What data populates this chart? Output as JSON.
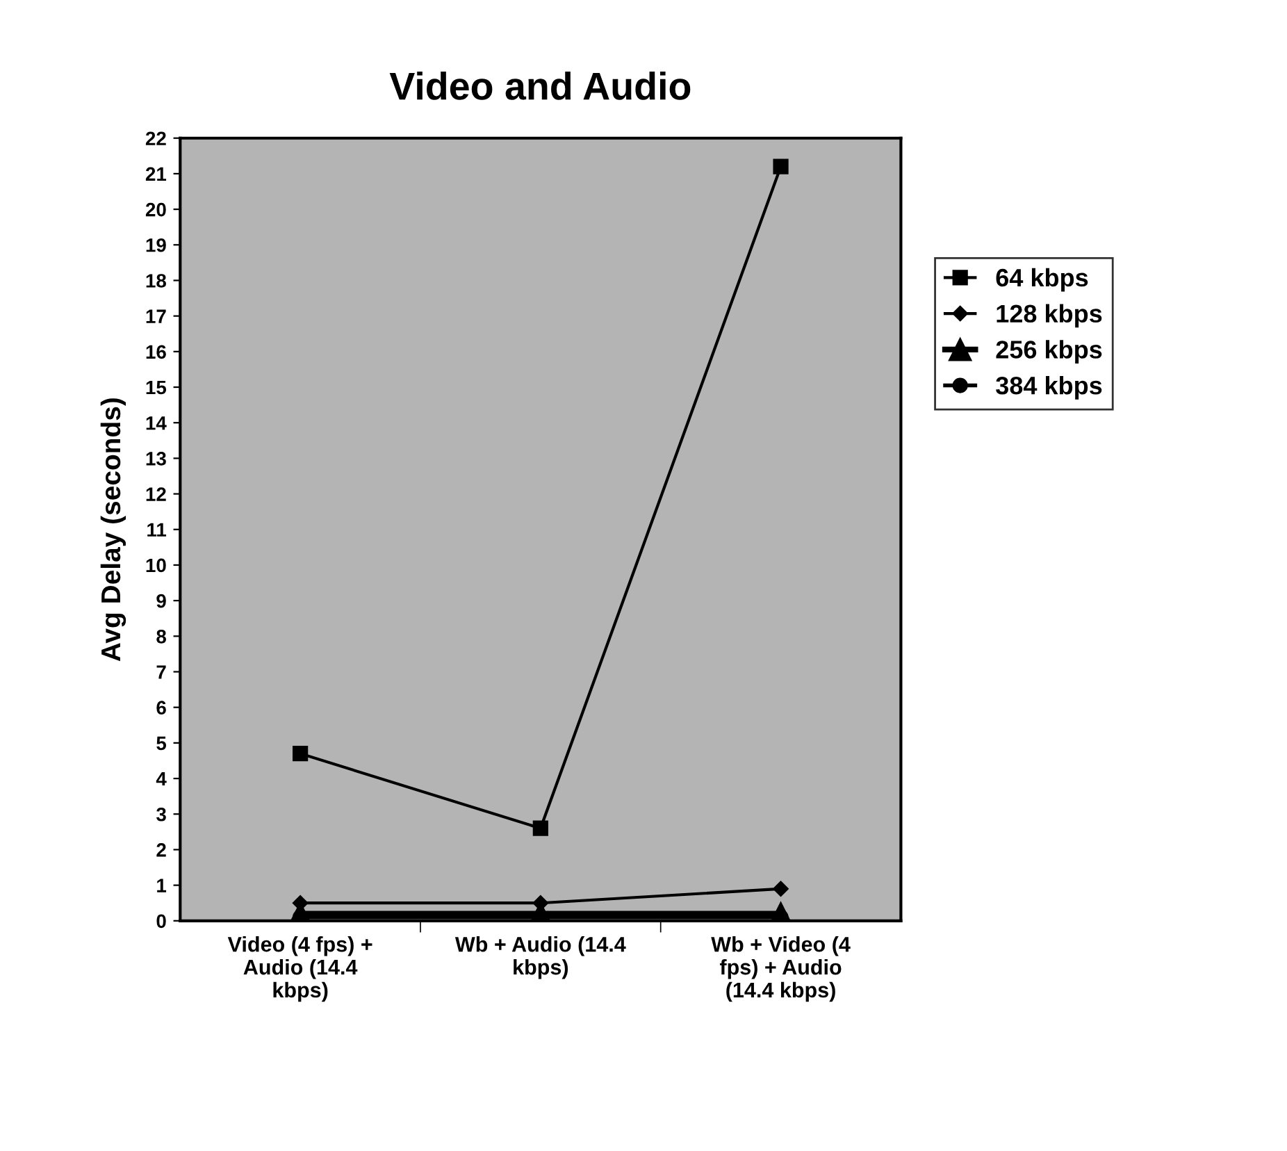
{
  "chart_data": {
    "type": "line",
    "title": "Video and Audio",
    "ylabel": "Avg Delay (seconds)",
    "categories": [
      "Video (4 fps) + Audio (14.4 kbps)",
      "Wb + Audio (14.4 kbps)",
      "Wb + Video (4 fps) + Audio (14.4 kbps)"
    ],
    "series": [
      {
        "name": "64 kbps",
        "color": "#000000",
        "marker": "square",
        "values": [
          4.7,
          2.6,
          21.2
        ]
      },
      {
        "name": "128 kbps",
        "color": "#000000",
        "marker": "diamond",
        "values": [
          0.5,
          0.5,
          0.9
        ]
      },
      {
        "name": "256 kbps",
        "color": "#000000",
        "marker": "triangle",
        "values": [
          0.2,
          0.2,
          0.2
        ]
      },
      {
        "name": "384 kbps",
        "color": "#000000",
        "marker": "circle",
        "values": [
          0.1,
          0.1,
          0.1
        ]
      }
    ],
    "ylim": [
      0,
      22
    ],
    "yticks": [
      0,
      1,
      2,
      3,
      4,
      5,
      6,
      7,
      8,
      9,
      10,
      11,
      12,
      13,
      14,
      15,
      16,
      17,
      18,
      19,
      20,
      21,
      22
    ],
    "legend": "right",
    "line_style": "solid"
  }
}
